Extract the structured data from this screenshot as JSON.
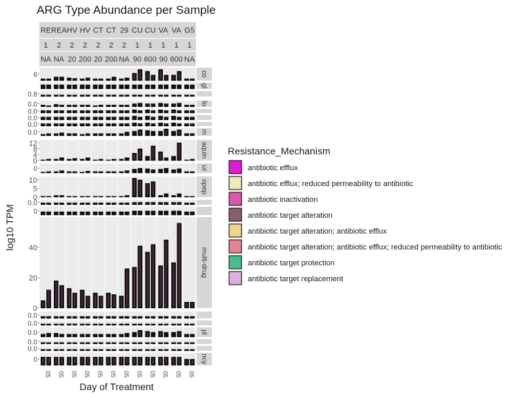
{
  "chart_data": {
    "type": "bar",
    "title": "ARG Type Abundance per Sample",
    "xlabel": "Day of Treatment",
    "ylabel": "log10 TPM",
    "column_strips": {
      "row1": [
        "RE",
        "REA",
        "HV",
        "HV",
        "CT",
        "CT",
        "29",
        "CU",
        "CU",
        "VA",
        "VA",
        "G5"
      ],
      "row2": [
        "1",
        "2",
        "2",
        "2",
        "2",
        "2",
        "2",
        "1",
        "1",
        "1",
        "1",
        "1"
      ],
      "row3": [
        "NA",
        "NA",
        "20",
        "200",
        "20",
        "200",
        "NA",
        "90",
        "600",
        "90",
        "600",
        "NA"
      ]
    },
    "legend": {
      "title": "Resistance_Mechanism",
      "position": "right",
      "items": [
        {
          "label": "antibiotic efflux",
          "color": "#e11ad6"
        },
        {
          "label": "antibiotic efflux; reduced permeability to antibiotic",
          "color": "#eeebbd"
        },
        {
          "label": "antibiotic inactivation",
          "color": "#d858ad"
        },
        {
          "label": "antibiotic target alteration",
          "color": "#866169"
        },
        {
          "label": "antibiotic target alteration; antibiotic efflux",
          "color": "#f0d48d"
        },
        {
          "label": "antibiotic target alteration; antibiotic efflux; reduced permeability to antibiotic",
          "color": "#e38494"
        },
        {
          "label": "antibiotic target protection",
          "color": "#46bf8e"
        },
        {
          "label": "antibiotic target replacement",
          "color": "#dcb0dc"
        }
      ]
    },
    "facets": [
      {
        "strip": "co",
        "ticks": [
          "6"
        ],
        "ylim": [
          0,
          7
        ],
        "values": [
          [
            1,
            1
          ],
          [
            2,
            2
          ],
          [
            1.5,
            1.2
          ],
          [
            1,
            1.5
          ],
          [
            1,
            1
          ],
          [
            1,
            2
          ],
          [
            1,
            1.5
          ],
          [
            4,
            6
          ],
          [
            5,
            3
          ],
          [
            6,
            3
          ],
          [
            3,
            5
          ],
          [
            1,
            1
          ]
        ]
      },
      {
        "strip": "gl",
        "ticks": [],
        "ylim": [
          0,
          3
        ],
        "values": [
          [
            2,
            2
          ],
          [
            2,
            2
          ],
          [
            2,
            2
          ],
          [
            2,
            2
          ],
          [
            2,
            2
          ],
          [
            2,
            2
          ],
          [
            2,
            2
          ],
          [
            2,
            2
          ],
          [
            2,
            2
          ],
          [
            2,
            2
          ],
          [
            2,
            2
          ],
          [
            2,
            2
          ]
        ]
      },
      {
        "strip": "",
        "ticks": [
          "0.8"
        ],
        "ylim": [
          0,
          1
        ],
        "values": [
          [
            0.3,
            0.3
          ],
          [
            0.3,
            0.3
          ],
          [
            0.3,
            0.3
          ],
          [
            0.3,
            0.3
          ],
          [
            0.3,
            0.3
          ],
          [
            0.3,
            0.3
          ],
          [
            0.3,
            0.3
          ],
          [
            0.3,
            0.3
          ],
          [
            0.3,
            0.3
          ],
          [
            0.3,
            0.3
          ],
          [
            0.3,
            0.3
          ],
          [
            0.3,
            0.3
          ]
        ]
      },
      {
        "strip": "lo",
        "ticks": [
          "0.0"
        ],
        "ylim": [
          0,
          1
        ],
        "values": [
          [
            0.3,
            0.2
          ],
          [
            0.4,
            0.3
          ],
          [
            0.3,
            0.3
          ],
          [
            0.3,
            0.3
          ],
          [
            0.2,
            0.3
          ],
          [
            0.3,
            0.3
          ],
          [
            0.3,
            0.3
          ],
          [
            0.5,
            0.6
          ],
          [
            0.5,
            0.5
          ],
          [
            0.6,
            0.5
          ],
          [
            0.5,
            0.6
          ],
          [
            0.3,
            0.3
          ]
        ]
      },
      {
        "strip": "",
        "ticks": [
          "0.0"
        ],
        "ylim": [
          0,
          1
        ],
        "values": [
          [
            0.6,
            0.6
          ],
          [
            0.6,
            0.6
          ],
          [
            0.6,
            0.6
          ],
          [
            0.6,
            0.6
          ],
          [
            0.6,
            0.6
          ],
          [
            0.6,
            0.6
          ],
          [
            0.6,
            0.6
          ],
          [
            0.8,
            0.6
          ],
          [
            0.8,
            0.6
          ],
          [
            0.8,
            0.6
          ],
          [
            0.8,
            0.6
          ],
          [
            0.6,
            0.6
          ]
        ]
      },
      {
        "strip": "",
        "ticks": [
          "0.0"
        ],
        "ylim": [
          0,
          1
        ],
        "values": [
          [
            0.6,
            0.6
          ],
          [
            0.6,
            0.6
          ],
          [
            0.6,
            0.6
          ],
          [
            0.6,
            0.6
          ],
          [
            0.6,
            0.6
          ],
          [
            0.6,
            0.6
          ],
          [
            0.6,
            0.6
          ],
          [
            0.8,
            0.6
          ],
          [
            0.8,
            0.6
          ],
          [
            0.8,
            0.6
          ],
          [
            0.8,
            0.6
          ],
          [
            0.6,
            0.6
          ]
        ]
      },
      {
        "strip": "",
        "ticks": [
          "0.0"
        ],
        "ylim": [
          0,
          1
        ],
        "values": [
          [
            0.6,
            0.6
          ],
          [
            0.6,
            0.6
          ],
          [
            0.6,
            0.6
          ],
          [
            0.6,
            0.6
          ],
          [
            0.6,
            0.6
          ],
          [
            0.6,
            0.6
          ],
          [
            0.6,
            0.6
          ],
          [
            0.8,
            0.6
          ],
          [
            0.8,
            0.6
          ],
          [
            0.8,
            0.6
          ],
          [
            0.8,
            0.6
          ],
          [
            0.6,
            0.6
          ]
        ]
      },
      {
        "strip": "m",
        "ticks": [
          "0.0"
        ],
        "ylim": [
          0,
          1
        ],
        "values": [
          [
            0.2,
            0.3
          ],
          [
            0.3,
            0.4
          ],
          [
            0.3,
            0.3
          ],
          [
            0.2,
            0.3
          ],
          [
            0.3,
            0.3
          ],
          [
            0.3,
            0.3
          ],
          [
            0.3,
            0.5
          ],
          [
            0.6,
            0.8
          ],
          [
            0.7,
            0.6
          ],
          [
            0.6,
            0.9
          ],
          [
            0.6,
            0.8
          ],
          [
            0.3,
            0.3
          ]
        ]
      },
      {
        "strip": "aquin",
        "ticks": [
          "0",
          "4",
          "8",
          "12"
        ],
        "ylim": [
          0,
          14
        ],
        "values": [
          [
            0.5,
            1
          ],
          [
            1,
            2
          ],
          [
            1,
            1.5
          ],
          [
            1,
            2
          ],
          [
            0.5,
            1
          ],
          [
            0.5,
            1
          ],
          [
            1,
            2
          ],
          [
            5,
            8
          ],
          [
            3,
            10
          ],
          [
            6,
            2
          ],
          [
            3,
            12
          ],
          [
            0.5,
            1
          ]
        ]
      },
      {
        "strip": "ur",
        "ticks": [
          "0"
        ],
        "ylim": [
          0,
          2
        ],
        "values": [
          [
            0.2,
            0.3
          ],
          [
            0.3,
            0.5
          ],
          [
            0.3,
            0.3
          ],
          [
            0.2,
            0.4
          ],
          [
            0.3,
            0.3
          ],
          [
            0.3,
            0.3
          ],
          [
            0.3,
            0.5
          ],
          [
            0.8,
            1
          ],
          [
            0.9,
            0.7
          ],
          [
            0.8,
            1
          ],
          [
            0.7,
            0.9
          ],
          [
            0.3,
            0.3
          ]
        ]
      },
      {
        "strip": "opep",
        "ticks": [
          "0",
          "5",
          "10"
        ],
        "ylim": [
          0,
          12
        ],
        "values": [
          [
            0.5,
            0.5
          ],
          [
            1,
            1
          ],
          [
            0.5,
            0.5
          ],
          [
            0.5,
            0.5
          ],
          [
            0.5,
            0.5
          ],
          [
            0.5,
            0.5
          ],
          [
            0.5,
            1
          ],
          [
            11,
            10
          ],
          [
            8,
            9
          ],
          [
            1,
            2
          ],
          [
            1,
            2
          ],
          [
            0.5,
            0.5
          ]
        ]
      },
      {
        "strip": "",
        "ticks": [
          "0.0"
        ],
        "ylim": [
          0,
          1
        ],
        "values": [
          [
            0.4,
            0.4
          ],
          [
            0.4,
            0.4
          ],
          [
            0.4,
            0.4
          ],
          [
            0.4,
            0.4
          ],
          [
            0.4,
            0.4
          ],
          [
            0.4,
            0.4
          ],
          [
            0.4,
            0.4
          ],
          [
            0.5,
            0.5
          ],
          [
            0.5,
            0.5
          ],
          [
            0.5,
            0.5
          ],
          [
            0.5,
            0.5
          ],
          [
            0.4,
            0.4
          ]
        ]
      },
      {
        "strip": "",
        "ticks": [
          "0"
        ],
        "ylim": [
          0,
          1
        ],
        "values": [
          [
            0.4,
            0.4
          ],
          [
            0.4,
            0.4
          ],
          [
            0.4,
            0.4
          ],
          [
            0.4,
            0.4
          ],
          [
            0.4,
            0.4
          ],
          [
            0.4,
            0.4
          ],
          [
            0.4,
            0.4
          ],
          [
            0.5,
            0.5
          ],
          [
            0.5,
            0.5
          ],
          [
            0.5,
            0.5
          ],
          [
            0.5,
            0.5
          ],
          [
            0.4,
            0.4
          ]
        ]
      },
      {
        "strip": "multi-drug",
        "ticks": [
          "0",
          "20",
          "40"
        ],
        "ylim": [
          0,
          60
        ],
        "values": [
          [
            5,
            12
          ],
          [
            18,
            15
          ],
          [
            13,
            10
          ],
          [
            12,
            8
          ],
          [
            10,
            8
          ],
          [
            10,
            9
          ],
          [
            8,
            26
          ],
          [
            27,
            41
          ],
          [
            37,
            42
          ],
          [
            28,
            45
          ],
          [
            30,
            56
          ],
          [
            4,
            4
          ]
        ]
      },
      {
        "strip": "",
        "ticks": [
          "0.0"
        ],
        "ylim": [
          0,
          1
        ],
        "values": [
          [
            0.3,
            0.3
          ],
          [
            0.3,
            0.3
          ],
          [
            0.3,
            0.3
          ],
          [
            0.3,
            0.3
          ],
          [
            0.3,
            0.3
          ],
          [
            0.3,
            0.3
          ],
          [
            0.3,
            0.3
          ],
          [
            0.3,
            0.3
          ],
          [
            0.3,
            0.3
          ],
          [
            0.3,
            0.3
          ],
          [
            0.3,
            0.3
          ],
          [
            0.3,
            0.3
          ]
        ]
      },
      {
        "strip": "",
        "ticks": [
          "0.0"
        ],
        "ylim": [
          0,
          1
        ],
        "values": [
          [
            0.3,
            0.3
          ],
          [
            0.3,
            0.3
          ],
          [
            0.3,
            0.3
          ],
          [
            0.3,
            0.3
          ],
          [
            0.3,
            0.3
          ],
          [
            0.3,
            0.3
          ],
          [
            0.3,
            0.3
          ],
          [
            0.3,
            0.3
          ],
          [
            0.3,
            0.3
          ],
          [
            0.3,
            0.3
          ],
          [
            0.3,
            0.3
          ],
          [
            0.3,
            0.3
          ]
        ]
      },
      {
        "strip": "pl",
        "ticks": [
          "0.0"
        ],
        "ylim": [
          0,
          1
        ],
        "values": [
          [
            0.3,
            0.4
          ],
          [
            0.4,
            0.3
          ],
          [
            0.3,
            0.3
          ],
          [
            0.3,
            0.3
          ],
          [
            0.3,
            0.3
          ],
          [
            0.3,
            0.3
          ],
          [
            0.3,
            0.4
          ],
          [
            0.5,
            0.7
          ],
          [
            0.6,
            0.5
          ],
          [
            0.6,
            0.5
          ],
          [
            0.5,
            0.6
          ],
          [
            0.3,
            0.3
          ]
        ]
      },
      {
        "strip": "",
        "ticks": [
          "0.0"
        ],
        "ylim": [
          0,
          1
        ],
        "values": [
          [
            0.3,
            0.3
          ],
          [
            0.3,
            0.3
          ],
          [
            0.3,
            0.3
          ],
          [
            0.3,
            0.3
          ],
          [
            0.3,
            0.3
          ],
          [
            0.3,
            0.3
          ],
          [
            0.3,
            0.3
          ],
          [
            0.3,
            0.3
          ],
          [
            0.3,
            0.3
          ],
          [
            0.3,
            0.3
          ],
          [
            0.3,
            0.3
          ],
          [
            0.3,
            0.3
          ]
        ]
      },
      {
        "strip": "",
        "ticks": [
          "0.0"
        ],
        "ylim": [
          0,
          1
        ],
        "values": [
          [
            0.3,
            0.3
          ],
          [
            0.3,
            0.3
          ],
          [
            0.3,
            0.3
          ],
          [
            0.3,
            0.3
          ],
          [
            0.3,
            0.3
          ],
          [
            0.3,
            0.3
          ],
          [
            0.3,
            0.3
          ],
          [
            0.3,
            0.3
          ],
          [
            0.3,
            0.3
          ],
          [
            0.3,
            0.3
          ],
          [
            0.3,
            0.3
          ],
          [
            0.3,
            0.3
          ]
        ]
      },
      {
        "strip": "ncy",
        "ticks": [
          "0"
        ],
        "ylim": [
          0,
          3
        ],
        "values": [
          [
            2,
            2
          ],
          [
            2,
            2
          ],
          [
            2,
            2
          ],
          [
            2,
            2
          ],
          [
            2,
            2
          ],
          [
            2,
            2
          ],
          [
            2,
            2
          ],
          [
            2,
            2
          ],
          [
            2,
            2
          ],
          [
            2,
            2
          ],
          [
            2,
            2
          ],
          [
            1.5,
            1.5
          ]
        ]
      }
    ],
    "x_ticks": [
      "05",
      "05",
      "05",
      "05",
      "05",
      "05",
      "05",
      "05",
      "05",
      "05",
      "05",
      "05"
    ]
  }
}
